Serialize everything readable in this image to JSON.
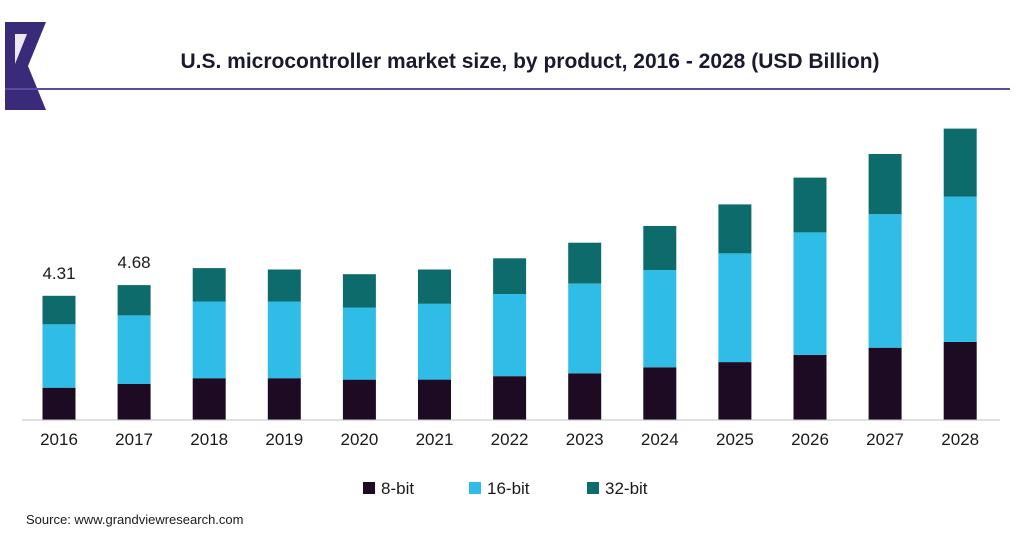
{
  "chart_data": {
    "type": "bar",
    "stacked": true,
    "title": "U.S. microcontroller market size, by product, 2016 - 2028 (USD Billion)",
    "source": "Source: www.grandviewresearch.com",
    "categories": [
      "2016",
      "2017",
      "2018",
      "2019",
      "2020",
      "2021",
      "2022",
      "2023",
      "2024",
      "2025",
      "2026",
      "2027",
      "2028"
    ],
    "series": [
      {
        "name": "8-bit",
        "color": "#1d0b24",
        "values": [
          1.12,
          1.25,
          1.45,
          1.45,
          1.4,
          1.4,
          1.52,
          1.62,
          1.83,
          2.01,
          2.26,
          2.51,
          2.71
        ]
      },
      {
        "name": "16-bit",
        "color": "#2fbde8",
        "values": [
          2.2,
          2.38,
          2.66,
          2.66,
          2.5,
          2.63,
          2.85,
          3.11,
          3.37,
          3.77,
          4.25,
          4.63,
          5.04
        ]
      },
      {
        "name": "32-bit",
        "color": "#0e6b6c",
        "values": [
          0.99,
          1.05,
          1.16,
          1.11,
          1.16,
          1.19,
          1.24,
          1.42,
          1.53,
          1.7,
          1.9,
          2.09,
          2.36
        ]
      }
    ],
    "data_labels": [
      {
        "category": "2016",
        "text": "4.31"
      },
      {
        "category": "2017",
        "text": "4.68"
      }
    ],
    "legend_position": "bottom",
    "grid": false,
    "ylim": [
      0,
      10.2
    ]
  },
  "colors": {
    "accent_bar": "#3a2a7a",
    "rule": "#5b4aa0",
    "axis": "#c0c0c0"
  }
}
